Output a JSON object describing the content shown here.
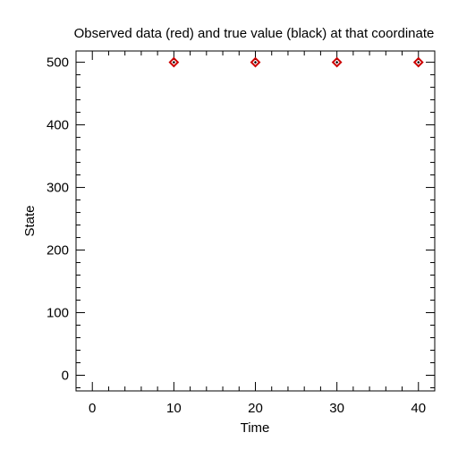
{
  "chart_data": {
    "type": "scatter",
    "title": "Observed data (red) and true value (black) at that coordinate",
    "xlabel": "Time",
    "ylabel": "State",
    "xlim": [
      -2,
      42
    ],
    "ylim": [
      -25,
      518
    ],
    "xticks": [
      0,
      10,
      20,
      30,
      40
    ],
    "yticks": [
      0,
      100,
      200,
      300,
      400,
      500
    ],
    "xtick_labels": [
      "0",
      "10",
      "20",
      "30",
      "40"
    ],
    "ytick_labels": [
      "0",
      "100",
      "200",
      "300",
      "400",
      "500"
    ],
    "grid": false,
    "legend": "none",
    "series": [
      {
        "marker": "diamond-open",
        "color": "#cc0000",
        "x": [
          10,
          20,
          30,
          40
        ],
        "y": [
          500,
          500,
          500,
          500
        ]
      },
      {
        "marker": "diamond-filled",
        "color": "#000000",
        "x": [
          10,
          20,
          30,
          40
        ],
        "y": [
          500,
          500,
          500,
          500
        ]
      }
    ]
  }
}
